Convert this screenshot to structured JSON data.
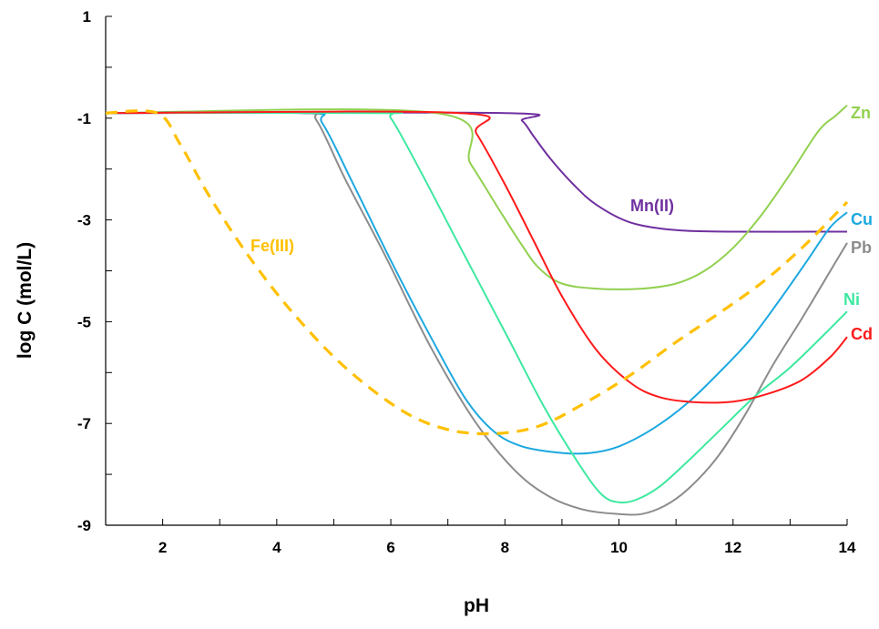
{
  "chart_data": {
    "type": "line",
    "xlabel": "pH",
    "ylabel": "log C (mol/L)",
    "xlim": [
      1,
      14
    ],
    "ylim": [
      -9,
      1
    ],
    "x_ticks": [
      2,
      4,
      6,
      8,
      10,
      12,
      14
    ],
    "y_ticks": [
      1,
      -1,
      -3,
      -5,
      -7,
      -9
    ],
    "grid": false,
    "series": [
      {
        "name": "Mn(II)",
        "color": "#7030A0",
        "dashed": false,
        "points": [
          [
            1,
            -0.9
          ],
          [
            8,
            -0.9
          ],
          [
            8.3,
            -1.05
          ],
          [
            8.5,
            -1.35
          ],
          [
            8.8,
            -1.8
          ],
          [
            9.2,
            -2.3
          ],
          [
            9.6,
            -2.7
          ],
          [
            10.2,
            -3.05
          ],
          [
            11,
            -3.2
          ],
          [
            12,
            -3.23
          ],
          [
            14,
            -3.23
          ]
        ]
      },
      {
        "name": "Zn",
        "color": "#92D050",
        "dashed": false,
        "points": [
          [
            1,
            -0.9
          ],
          [
            6.8,
            -0.9
          ],
          [
            7.4,
            -1.9
          ],
          [
            7.9,
            -2.8
          ],
          [
            8.3,
            -3.5
          ],
          [
            8.6,
            -3.95
          ],
          [
            9,
            -4.25
          ],
          [
            9.6,
            -4.35
          ],
          [
            10.4,
            -4.35
          ],
          [
            11,
            -4.25
          ],
          [
            11.5,
            -4.0
          ],
          [
            12,
            -3.55
          ],
          [
            12.5,
            -2.9
          ],
          [
            13,
            -2.1
          ],
          [
            13.5,
            -1.25
          ],
          [
            13.8,
            -0.95
          ],
          [
            14,
            -0.75
          ]
        ]
      },
      {
        "name": "Cu",
        "color": "#1CA8E0",
        "dashed": false,
        "points": [
          [
            1,
            -0.9
          ],
          [
            4.5,
            -0.9
          ],
          [
            4.8,
            -1.1
          ],
          [
            5.3,
            -2.2
          ],
          [
            6,
            -3.8
          ],
          [
            6.7,
            -5.3
          ],
          [
            7.3,
            -6.5
          ],
          [
            7.8,
            -7.15
          ],
          [
            8.3,
            -7.45
          ],
          [
            9,
            -7.58
          ],
          [
            9.5,
            -7.58
          ],
          [
            10,
            -7.45
          ],
          [
            10.6,
            -7.1
          ],
          [
            11.2,
            -6.6
          ],
          [
            11.8,
            -5.95
          ],
          [
            12.3,
            -5.35
          ],
          [
            12.8,
            -4.6
          ],
          [
            13.3,
            -3.8
          ],
          [
            13.7,
            -3.15
          ],
          [
            14,
            -2.85
          ]
        ]
      },
      {
        "name": "Pb",
        "color": "#8C8C8C",
        "dashed": false,
        "points": [
          [
            1,
            -0.9
          ],
          [
            4.4,
            -0.9
          ],
          [
            4.7,
            -1.05
          ],
          [
            5.2,
            -2.2
          ],
          [
            5.9,
            -3.7
          ],
          [
            6.7,
            -5.5
          ],
          [
            7.5,
            -7.0
          ],
          [
            8.2,
            -7.95
          ],
          [
            8.8,
            -8.45
          ],
          [
            9.4,
            -8.7
          ],
          [
            10,
            -8.78
          ],
          [
            10.4,
            -8.78
          ],
          [
            10.8,
            -8.62
          ],
          [
            11.2,
            -8.3
          ],
          [
            11.7,
            -7.7
          ],
          [
            12.2,
            -6.85
          ],
          [
            12.7,
            -5.85
          ],
          [
            13.2,
            -4.95
          ],
          [
            13.6,
            -4.2
          ],
          [
            14,
            -3.45
          ]
        ]
      },
      {
        "name": "Ni",
        "color": "#3DE8A0",
        "dashed": false,
        "points": [
          [
            1,
            -0.9
          ],
          [
            5.8,
            -0.9
          ],
          [
            6,
            -1.0
          ],
          [
            6.5,
            -2.0
          ],
          [
            7.2,
            -3.5
          ],
          [
            8,
            -5.2
          ],
          [
            8.7,
            -6.7
          ],
          [
            9.3,
            -7.8
          ],
          [
            9.7,
            -8.4
          ],
          [
            10,
            -8.55
          ],
          [
            10.3,
            -8.5
          ],
          [
            10.7,
            -8.25
          ],
          [
            11.2,
            -7.75
          ],
          [
            11.8,
            -7.1
          ],
          [
            12.4,
            -6.45
          ],
          [
            13,
            -5.9
          ],
          [
            13.6,
            -5.25
          ],
          [
            14,
            -4.8
          ]
        ]
      },
      {
        "name": "Cd",
        "color": "#FF1A1A",
        "dashed": false,
        "points": [
          [
            1,
            -0.9
          ],
          [
            7.2,
            -0.9
          ],
          [
            7.5,
            -1.3
          ],
          [
            8,
            -2.3
          ],
          [
            8.5,
            -3.4
          ],
          [
            9,
            -4.5
          ],
          [
            9.6,
            -5.55
          ],
          [
            10.2,
            -6.2
          ],
          [
            10.7,
            -6.48
          ],
          [
            11.3,
            -6.58
          ],
          [
            12,
            -6.57
          ],
          [
            12.6,
            -6.42
          ],
          [
            13.2,
            -6.15
          ],
          [
            13.7,
            -5.7
          ],
          [
            14,
            -5.3
          ]
        ]
      },
      {
        "name": "Fe(III)",
        "color": "#FFC000",
        "dashed": true,
        "points": [
          [
            1,
            -0.9
          ],
          [
            1.9,
            -0.9
          ],
          [
            2.3,
            -1.5
          ],
          [
            2.8,
            -2.5
          ],
          [
            3.5,
            -3.7
          ],
          [
            4.3,
            -4.85
          ],
          [
            5.2,
            -5.9
          ],
          [
            6.2,
            -6.75
          ],
          [
            7,
            -7.12
          ],
          [
            7.8,
            -7.2
          ],
          [
            8.6,
            -7.05
          ],
          [
            9.4,
            -6.6
          ],
          [
            10.2,
            -6.05
          ],
          [
            11,
            -5.4
          ],
          [
            11.8,
            -4.8
          ],
          [
            12.6,
            -4.15
          ],
          [
            13.3,
            -3.45
          ],
          [
            14,
            -2.65
          ]
        ]
      }
    ],
    "annotations": [
      {
        "text": "Mn(II)",
        "series": "Mn(II)"
      },
      {
        "text": "Zn",
        "series": "Zn"
      },
      {
        "text": "Cu",
        "series": "Cu"
      },
      {
        "text": "Pb",
        "series": "Pb"
      },
      {
        "text": "Ni",
        "series": "Ni"
      },
      {
        "text": "Cd",
        "series": "Cd"
      },
      {
        "text": "Fe(III)",
        "series": "Fe(III)"
      }
    ]
  }
}
